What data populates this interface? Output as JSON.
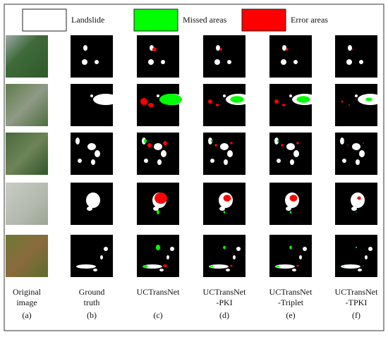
{
  "legend": [
    {
      "label": "Landslide"
    },
    {
      "label": "Missed areas"
    },
    {
      "label": "Error areas"
    }
  ],
  "columns": [
    {
      "caption": [
        "Original",
        "image"
      ],
      "letter": "(a)"
    },
    {
      "caption": [
        "Ground",
        "truth"
      ],
      "letter": "(b)"
    },
    {
      "caption": [
        "UCTransNet"
      ],
      "letter": "(c)"
    },
    {
      "caption": [
        "UCTransNet",
        "-PKI"
      ],
      "letter": "(d)"
    },
    {
      "caption": [
        "UCTransNet",
        "-Triplet"
      ],
      "letter": "(e)"
    },
    {
      "caption": [
        "UCTransNet",
        "-TPKI"
      ],
      "letter": "(f)"
    }
  ]
}
